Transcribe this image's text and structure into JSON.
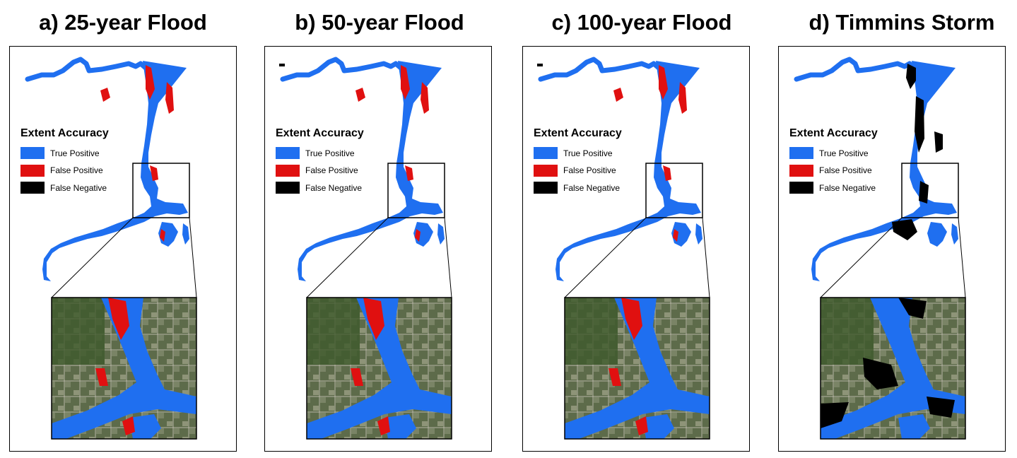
{
  "colors": {
    "true_positive": "#1f6ff0",
    "false_positive": "#e01010",
    "false_negative": "#000000"
  },
  "legend": {
    "title": "Extent Accuracy",
    "items": [
      {
        "label": "True Positive",
        "color": "#1f6ff0"
      },
      {
        "label": "False Positive",
        "color": "#e01010"
      },
      {
        "label": "False Negative",
        "color": "#000000"
      }
    ]
  },
  "panels": [
    {
      "title": "a) 25-year Flood",
      "emphasis": "false_positive"
    },
    {
      "title": "b) 50-year Flood",
      "emphasis": "false_positive"
    },
    {
      "title": "c) 100-year Flood",
      "emphasis": "false_positive"
    },
    {
      "title": "d) Timmins Storm",
      "emphasis": "false_negative"
    }
  ]
}
